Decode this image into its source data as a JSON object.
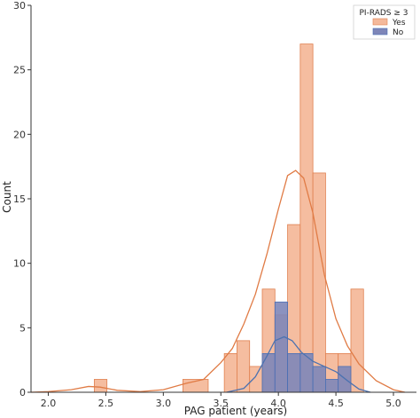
{
  "chart_data": {
    "type": "histogram",
    "xlabel": "PAG patient (years)",
    "ylabel": "Count",
    "xlim": [
      1.85,
      5.2
    ],
    "ylim": [
      0,
      30
    ],
    "xticks": [
      "2.0",
      "2.5",
      "3.0",
      "3.5",
      "4.0",
      "4.5",
      "5.0"
    ],
    "yticks": [
      "0",
      "5",
      "10",
      "15",
      "20",
      "25",
      "30"
    ],
    "grid": false,
    "legend": {
      "title": "PI-RADS ≥ 3",
      "placement": "top-right"
    },
    "series": [
      {
        "name": "Yes",
        "color": "#F4B99B",
        "edge": "#E08050",
        "line_color": "#E07B45",
        "bins": [
          {
            "x0": 2.4,
            "x1": 2.51,
            "count": 1
          },
          {
            "x0": 3.17,
            "x1": 3.39,
            "count": 1
          },
          {
            "x0": 3.53,
            "x1": 3.64,
            "count": 3
          },
          {
            "x0": 3.64,
            "x1": 3.75,
            "count": 4
          },
          {
            "x0": 3.75,
            "x1": 3.86,
            "count": 2
          },
          {
            "x0": 3.86,
            "x1": 3.97,
            "count": 8
          },
          {
            "x0": 3.97,
            "x1": 4.08,
            "count": 6
          },
          {
            "x0": 4.08,
            "x1": 4.19,
            "count": 13
          },
          {
            "x0": 4.19,
            "x1": 4.3,
            "count": 27
          },
          {
            "x0": 4.3,
            "x1": 4.41,
            "count": 17
          },
          {
            "x0": 4.41,
            "x1": 4.52,
            "count": 3
          },
          {
            "x0": 4.52,
            "x1": 4.63,
            "count": 3
          },
          {
            "x0": 4.63,
            "x1": 4.74,
            "count": 8
          }
        ],
        "kde": {
          "x": [
            1.85,
            2.0,
            2.2,
            2.35,
            2.45,
            2.6,
            2.8,
            3.0,
            3.2,
            3.35,
            3.5,
            3.6,
            3.7,
            3.8,
            3.9,
            4.0,
            4.08,
            4.15,
            4.22,
            4.3,
            4.4,
            4.5,
            4.6,
            4.7,
            4.85,
            5.0,
            5.1
          ],
          "y": [
            0.0,
            0.05,
            0.2,
            0.45,
            0.4,
            0.15,
            0.05,
            0.2,
            0.7,
            1.0,
            2.3,
            3.4,
            5.3,
            7.6,
            10.7,
            14.2,
            16.8,
            17.2,
            16.6,
            13.9,
            9.1,
            5.7,
            3.6,
            2.2,
            0.9,
            0.2,
            0.0
          ]
        }
      },
      {
        "name": "No",
        "color": "#7E86B8",
        "edge": "#4A6FB5",
        "line_color": "#4C72B0",
        "bins": [
          {
            "x0": 3.86,
            "x1": 3.97,
            "count": 3
          },
          {
            "x0": 3.97,
            "x1": 4.08,
            "count": 7
          },
          {
            "x0": 4.08,
            "x1": 4.19,
            "count": 3
          },
          {
            "x0": 4.19,
            "x1": 4.3,
            "count": 3
          },
          {
            "x0": 4.3,
            "x1": 4.41,
            "count": 2
          },
          {
            "x0": 4.41,
            "x1": 4.52,
            "count": 1
          },
          {
            "x0": 4.52,
            "x1": 4.63,
            "count": 2
          }
        ],
        "kde": {
          "x": [
            3.55,
            3.7,
            3.8,
            3.9,
            3.97,
            4.05,
            4.12,
            4.2,
            4.3,
            4.4,
            4.5,
            4.6,
            4.7,
            4.8
          ],
          "y": [
            0.0,
            0.3,
            1.2,
            2.8,
            4.0,
            4.3,
            4.0,
            3.1,
            2.4,
            2.0,
            1.6,
            0.9,
            0.25,
            0.0
          ]
        }
      }
    ]
  }
}
